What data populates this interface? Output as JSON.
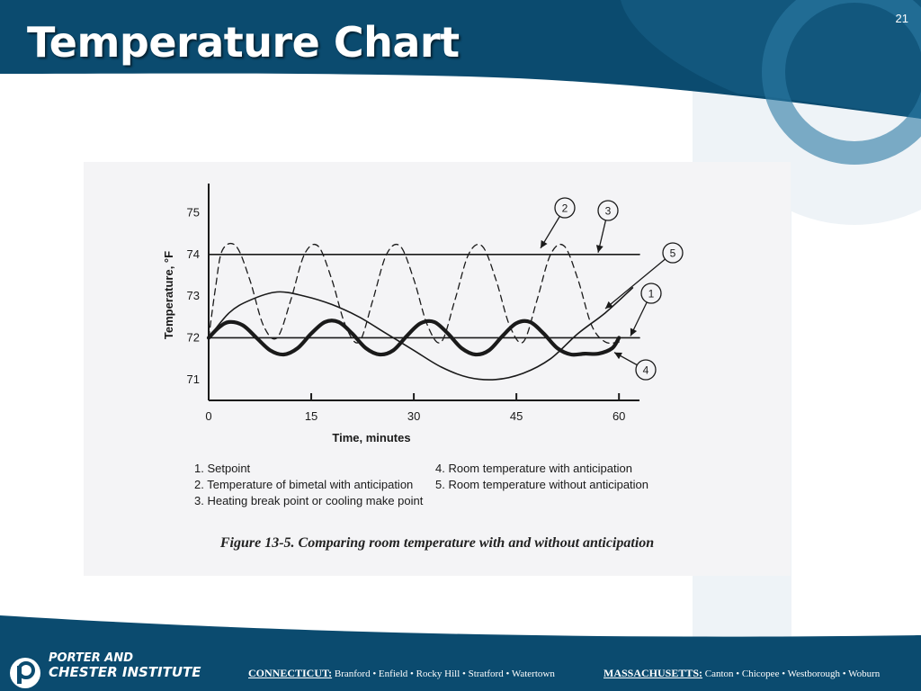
{
  "slide": {
    "title": "Temperature Chart",
    "number": "21",
    "colors": {
      "header": "#0b4b6f",
      "header_light": "#1a6389",
      "footer": "#0b4b6f",
      "watermark": "#eef3f7"
    }
  },
  "figure": {
    "caption": "Figure 13-5.  Comparing room temperature with and without anticipation",
    "legend": [
      "1. Setpoint",
      "2. Temperature of bimetal with anticipation",
      "3. Heating break point or cooling make point",
      "4. Room temperature with anticipation",
      "5. Room temperature without anticipation"
    ]
  },
  "chart_data": {
    "type": "line",
    "xlabel": "Time, minutes",
    "ylabel": "Temperature, °F",
    "xlim": [
      0,
      63
    ],
    "ylim": [
      70.5,
      75.7
    ],
    "xticks": [
      0,
      15,
      30,
      45,
      60
    ],
    "yticks": [
      71,
      72,
      73,
      74,
      75
    ],
    "grid": false,
    "callouts": [
      "1",
      "2",
      "3",
      "4",
      "5"
    ],
    "series": [
      {
        "id": "1",
        "style": "thin-solid",
        "x": [
          0,
          63
        ],
        "y": [
          72,
          72
        ]
      },
      {
        "id": "2",
        "style": "dashed",
        "x": [
          0,
          1,
          2,
          4,
          6,
          8,
          10,
          12,
          14,
          16,
          18,
          20,
          22,
          24,
          26,
          28,
          30,
          32,
          34,
          36,
          38,
          40,
          42,
          44,
          46,
          48,
          50,
          52,
          54,
          56,
          58,
          60
        ],
        "y": [
          72.0,
          73.2,
          74.1,
          74.2,
          73.4,
          72.3,
          72.0,
          72.9,
          74.0,
          74.2,
          73.4,
          72.3,
          71.9,
          72.9,
          74.0,
          74.2,
          73.4,
          72.3,
          71.9,
          72.9,
          74.0,
          74.2,
          73.4,
          72.3,
          71.9,
          72.9,
          74.0,
          74.2,
          73.4,
          72.3,
          71.9,
          71.9
        ]
      },
      {
        "id": "3",
        "style": "thin-solid",
        "x": [
          0,
          63
        ],
        "y": [
          74,
          74
        ]
      },
      {
        "id": "4",
        "style": "thick-solid",
        "x": [
          0,
          1.5,
          3,
          5,
          7,
          9,
          11,
          13,
          15,
          17,
          19,
          21,
          23,
          25,
          27,
          29,
          31,
          33,
          35,
          37,
          39,
          41,
          43,
          45,
          47,
          49,
          51,
          53,
          55,
          57,
          59,
          60
        ],
        "y": [
          72.0,
          72.25,
          72.38,
          72.3,
          72.0,
          71.7,
          71.6,
          71.75,
          72.1,
          72.38,
          72.38,
          72.1,
          71.75,
          71.6,
          71.7,
          72.05,
          72.35,
          72.38,
          72.1,
          71.75,
          71.6,
          71.7,
          72.05,
          72.35,
          72.38,
          72.1,
          71.75,
          71.6,
          71.62,
          71.62,
          71.75,
          72.0
        ]
      },
      {
        "id": "5",
        "style": "thin-solid",
        "x": [
          0,
          3,
          6,
          10,
          14,
          18,
          22,
          26,
          30,
          34,
          38,
          42,
          46,
          50,
          54,
          58,
          62
        ],
        "y": [
          72.0,
          72.6,
          72.9,
          73.1,
          73.0,
          72.8,
          72.5,
          72.1,
          71.7,
          71.3,
          71.05,
          71.0,
          71.15,
          71.5,
          72.1,
          72.6,
          73.2
        ]
      }
    ]
  },
  "footer": {
    "logo_line1": "PORTER AND",
    "logo_line2": "CHESTER INSTITUTE",
    "ct_label": "CONNECTICUT:",
    "ct_towns": "Branford • Enfield • Rocky Hill • Stratford • Watertown",
    "ma_label": "MASSACHUSETTS:",
    "ma_towns": "Canton • Chicopee • Westborough • Woburn"
  }
}
